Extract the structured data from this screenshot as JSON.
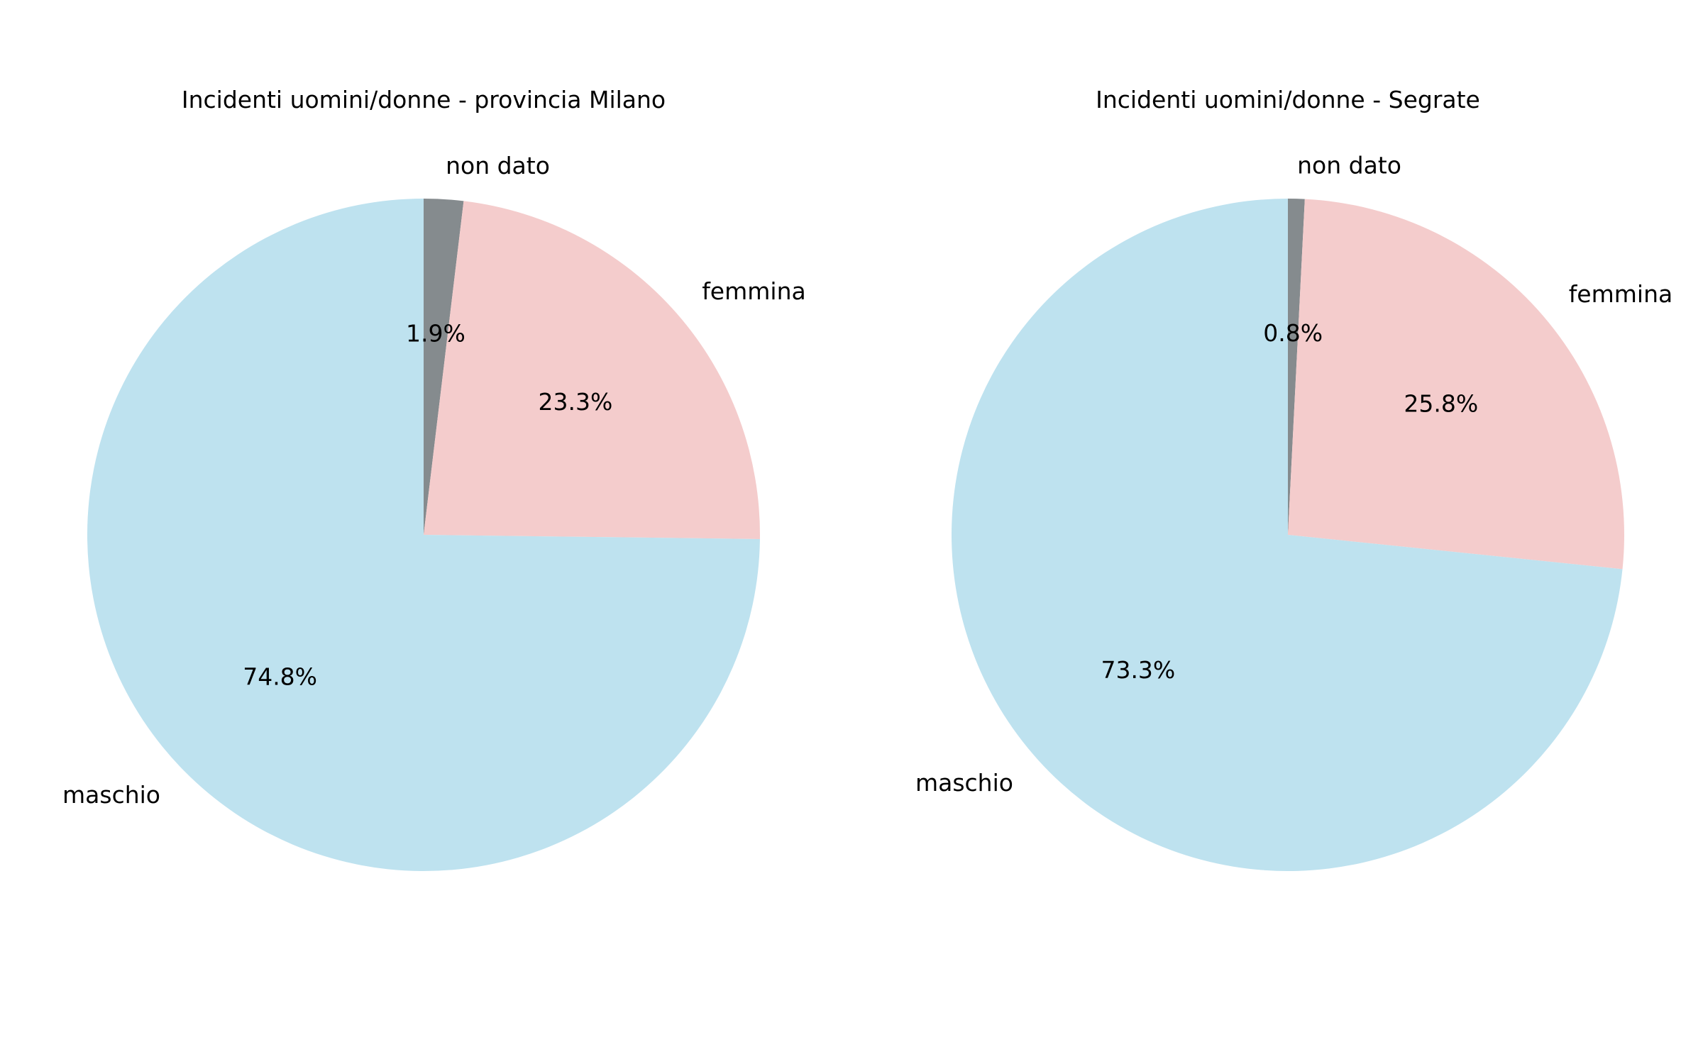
{
  "chart_data": [
    {
      "type": "pie",
      "title": "Incidenti uomini/donne - provincia Milano",
      "start_angle_deg": 90,
      "direction": "clockwise",
      "slices": [
        {
          "label": "non dato",
          "value": 1.9,
          "pct_label": "1.9%",
          "color": "#858b8e"
        },
        {
          "label": "femmina",
          "value": 23.3,
          "pct_label": "23.3%",
          "color": "#f4cccc"
        },
        {
          "label": "maschio",
          "value": 74.8,
          "pct_label": "74.8%",
          "color": "#bee2ef"
        }
      ]
    },
    {
      "type": "pie",
      "title": "Incidenti uomini/donne - Segrate",
      "start_angle_deg": 90,
      "direction": "clockwise",
      "slices": [
        {
          "label": "non dato",
          "value": 0.8,
          "pct_label": "0.8%",
          "color": "#858b8e"
        },
        {
          "label": "femmina",
          "value": 25.8,
          "pct_label": "25.8%",
          "color": "#f4cccc"
        },
        {
          "label": "maschio",
          "value": 73.3,
          "pct_label": "73.3%",
          "color": "#bee2ef"
        }
      ]
    }
  ]
}
